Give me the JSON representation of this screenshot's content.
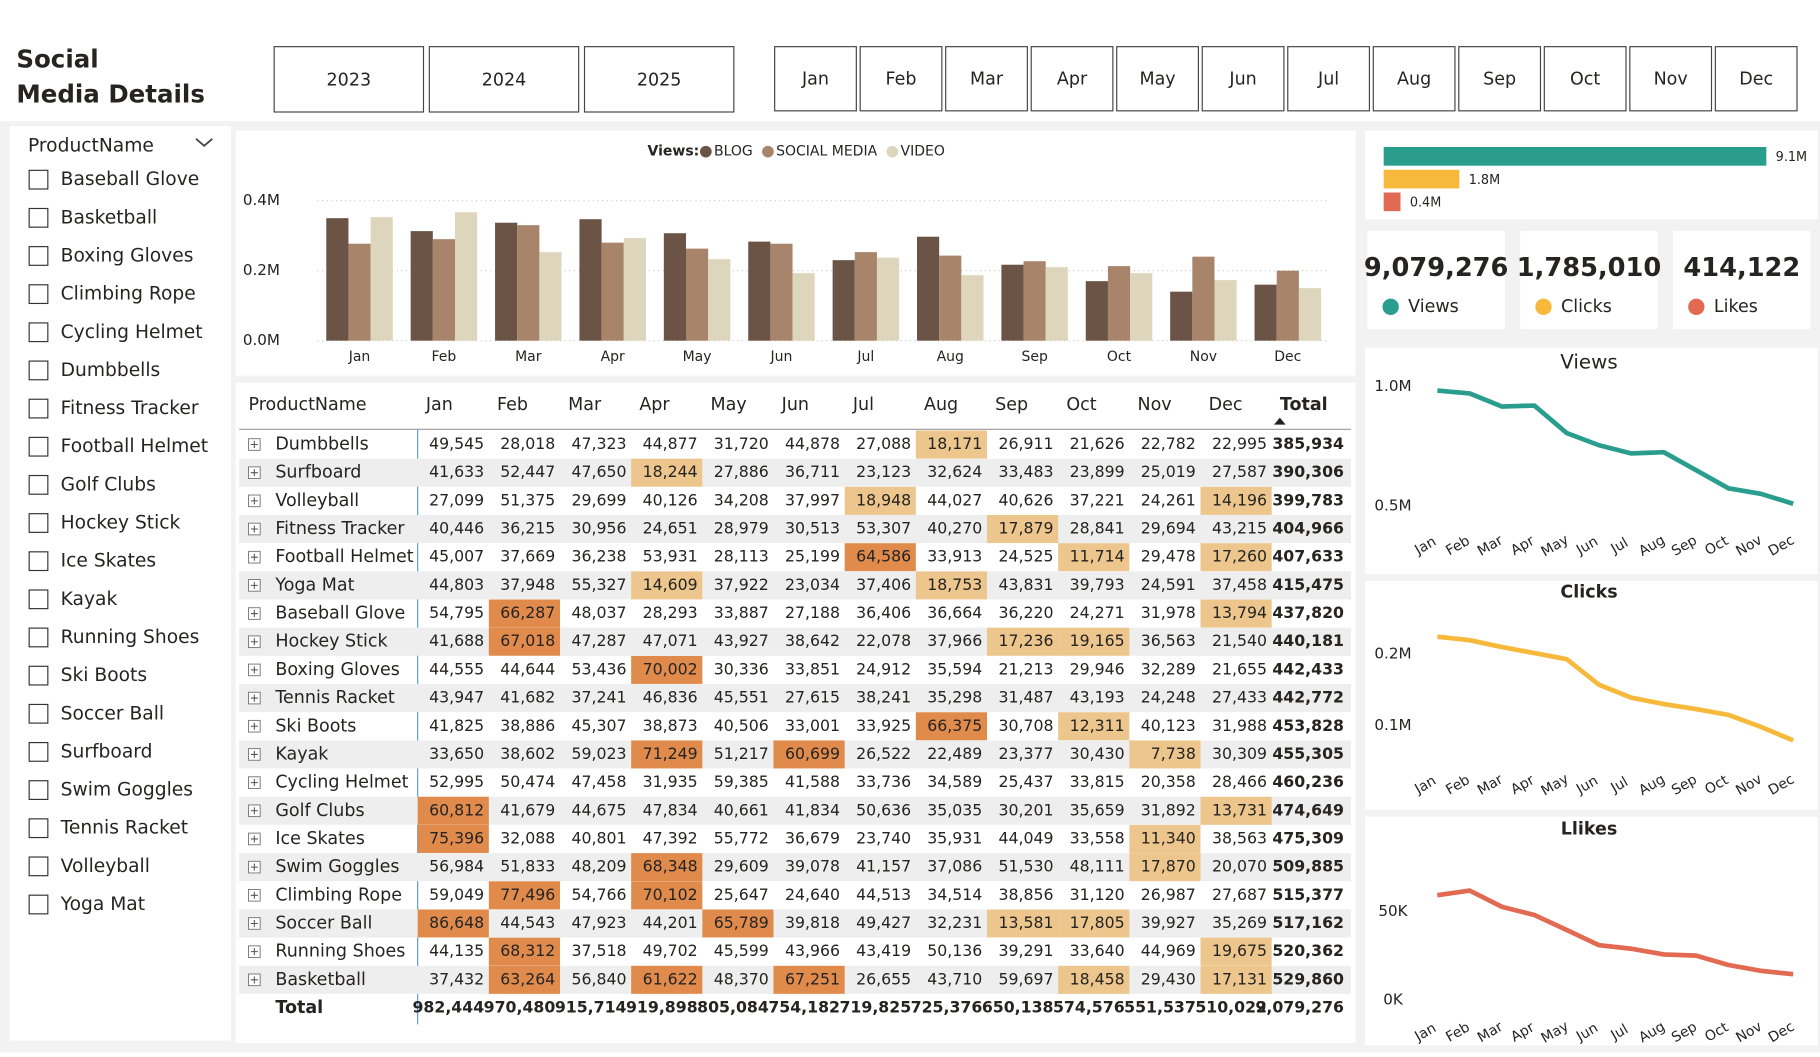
{
  "header": {
    "title_lines": [
      "Social",
      "Media Details"
    ]
  },
  "year_buttons": [
    "2023",
    "2024",
    "2025"
  ],
  "month_buttons": [
    "Jan",
    "Feb",
    "Mar",
    "Apr",
    "May",
    "Jun",
    "Jul",
    "Aug",
    "Sep",
    "Oct",
    "Nov",
    "Dec"
  ],
  "slicer": {
    "title": "ProductName",
    "items": [
      "Baseball Glove",
      "Basketball",
      "Boxing Gloves",
      "Climbing Rope",
      "Cycling Helmet",
      "Dumbbells",
      "Fitness Tracker",
      "Football Helmet",
      "Golf Clubs",
      "Hockey Stick",
      "Ice Skates",
      "Kayak",
      "Running Shoes",
      "Ski Boots",
      "Soccer Ball",
      "Surfboard",
      "Swim Goggles",
      "Tennis Racket",
      "Volleyball",
      "Yoga Mat"
    ]
  },
  "chart_data": [
    {
      "type": "bar",
      "legend_title": "Views:",
      "categories": [
        "Jan",
        "Feb",
        "Mar",
        "Apr",
        "May",
        "Jun",
        "Jul",
        "Aug",
        "Sep",
        "Oct",
        "Nov",
        "Dec"
      ],
      "series": [
        {
          "name": "BLOG",
          "color": "#6b5445",
          "values": [
            0.35,
            0.313,
            0.337,
            0.347,
            0.307,
            0.283,
            0.23,
            0.297,
            0.217,
            0.17,
            0.14,
            0.16
          ]
        },
        {
          "name": "SOCIAL MEDIA",
          "color": "#a8846a",
          "values": [
            0.277,
            0.29,
            0.33,
            0.28,
            0.263,
            0.277,
            0.253,
            0.243,
            0.227,
            0.213,
            0.24,
            0.2
          ]
        },
        {
          "name": "VIDEO",
          "color": "#ddd5bc",
          "values": [
            0.353,
            0.367,
            0.253,
            0.293,
            0.233,
            0.193,
            0.237,
            0.187,
            0.21,
            0.193,
            0.173,
            0.15
          ]
        }
      ],
      "ylim": [
        0,
        0.44
      ],
      "yticks": [
        {
          "value": 0,
          "label": "0.0M"
        },
        {
          "value": 0.2,
          "label": "0.2M"
        },
        {
          "value": 0.4,
          "label": "0.4M"
        }
      ],
      "grid": true
    },
    {
      "type": "hbar",
      "values": [
        9.1,
        1.8,
        0.4
      ],
      "value_labels": [
        "9.1M",
        "1.8M",
        "0.4M"
      ],
      "colors": [
        "#2a9d8f",
        "#f6b93b",
        "#e26a52"
      ],
      "xlim": [
        0,
        9.1
      ]
    },
    {
      "type": "line",
      "title": "Views",
      "color": "#2a9d8f",
      "categories": [
        "Jan",
        "Feb",
        "Mar",
        "Apr",
        "May",
        "Jun",
        "Jul",
        "Aug",
        "Sep",
        "Oct",
        "Nov",
        "Dec"
      ],
      "values": [
        982444,
        970480,
        915714,
        919898,
        805084,
        754182,
        719825,
        725376,
        650138,
        574576,
        551537,
        510022
      ],
      "ylim": [
        470000,
        1030000
      ],
      "yticks": [
        {
          "value": 500000,
          "label": "0.5M"
        },
        {
          "value": 1000000,
          "label": "1.0M"
        }
      ]
    },
    {
      "type": "line",
      "title": "Clicks",
      "color": "#f6b93b",
      "categories": [
        "Jan",
        "Feb",
        "Mar",
        "Apr",
        "May",
        "Jun",
        "Jul",
        "Aug",
        "Sep",
        "Oct",
        "Nov",
        "Dec"
      ],
      "values": [
        224600,
        219700,
        210000,
        201600,
        193000,
        157000,
        139000,
        130000,
        123000,
        114800,
        98000,
        79000
      ],
      "ylim": [
        62000,
        234000
      ],
      "yticks": [
        {
          "value": 100000,
          "label": "0.1M"
        },
        {
          "value": 200000,
          "label": "0.2M"
        }
      ]
    },
    {
      "type": "line",
      "title": "Llikes",
      "color": "#e26a52",
      "categories": [
        "Jan",
        "Feb",
        "Mar",
        "Apr",
        "May",
        "Jun",
        "Jul",
        "Aug",
        "Sep",
        "Oct",
        "Nov",
        "Dec"
      ],
      "values": [
        59200,
        61800,
        52600,
        48000,
        39500,
        30900,
        28900,
        25700,
        25000,
        19700,
        16400,
        14500
      ],
      "ylim": [
        0,
        66000
      ],
      "yticks": [
        {
          "value": 0,
          "label": "0K"
        },
        {
          "value": 50000,
          "label": "50K"
        }
      ]
    }
  ],
  "kpis": [
    {
      "value": "9,079,276",
      "label": "Views",
      "color": "#2a9d8f"
    },
    {
      "value": "1,785,010",
      "label": "Clicks",
      "color": "#f6b93b"
    },
    {
      "value": "414,122",
      "label": "Likes",
      "color": "#e26a52"
    }
  ],
  "table": {
    "columns": [
      "ProductName",
      "Jan",
      "Feb",
      "Mar",
      "Apr",
      "May",
      "Jun",
      "Jul",
      "Aug",
      "Sep",
      "Oct",
      "Nov",
      "Dec",
      "Total"
    ],
    "rows": [
      [
        "Dumbbells",
        "49,545",
        "28,018",
        "47,323",
        "44,877",
        "31,720",
        "44,878",
        "27,088",
        "18,171",
        "26,911",
        "21,626",
        "22,782",
        "22,995",
        "385,934"
      ],
      [
        "Surfboard",
        "41,633",
        "52,447",
        "47,650",
        "18,244",
        "27,886",
        "36,711",
        "23,123",
        "32,624",
        "33,483",
        "23,899",
        "25,019",
        "27,587",
        "390,306"
      ],
      [
        "Volleyball",
        "27,099",
        "51,375",
        "29,699",
        "40,126",
        "34,208",
        "37,997",
        "18,948",
        "44,027",
        "40,626",
        "37,221",
        "24,261",
        "14,196",
        "399,783"
      ],
      [
        "Fitness Tracker",
        "40,446",
        "36,215",
        "30,956",
        "24,651",
        "28,979",
        "30,513",
        "53,307",
        "40,270",
        "17,879",
        "28,841",
        "29,694",
        "43,215",
        "404,966"
      ],
      [
        "Football Helmet",
        "45,007",
        "37,669",
        "36,238",
        "53,931",
        "28,113",
        "25,199",
        "64,586",
        "33,913",
        "24,525",
        "11,714",
        "29,478",
        "17,260",
        "407,633"
      ],
      [
        "Yoga Mat",
        "44,803",
        "37,948",
        "55,327",
        "14,609",
        "37,922",
        "23,034",
        "37,406",
        "18,753",
        "43,831",
        "39,793",
        "24,591",
        "37,458",
        "415,475"
      ],
      [
        "Baseball Glove",
        "54,795",
        "66,287",
        "48,037",
        "28,293",
        "33,887",
        "27,188",
        "36,406",
        "36,664",
        "36,220",
        "24,271",
        "31,978",
        "13,794",
        "437,820"
      ],
      [
        "Hockey Stick",
        "41,688",
        "67,018",
        "47,287",
        "47,071",
        "43,927",
        "38,642",
        "22,078",
        "37,966",
        "17,236",
        "19,165",
        "36,563",
        "21,540",
        "440,181"
      ],
      [
        "Boxing Gloves",
        "44,555",
        "44,644",
        "53,436",
        "70,002",
        "30,336",
        "33,851",
        "24,912",
        "35,594",
        "21,213",
        "29,946",
        "32,289",
        "21,655",
        "442,433"
      ],
      [
        "Tennis Racket",
        "43,947",
        "41,682",
        "37,241",
        "46,836",
        "45,551",
        "27,615",
        "38,241",
        "35,298",
        "31,487",
        "43,193",
        "24,248",
        "27,433",
        "442,772"
      ],
      [
        "Ski Boots",
        "41,825",
        "38,886",
        "45,307",
        "38,873",
        "40,506",
        "33,001",
        "33,925",
        "66,375",
        "30,708",
        "12,311",
        "40,123",
        "31,988",
        "453,828"
      ],
      [
        "Kayak",
        "33,650",
        "38,602",
        "59,023",
        "71,249",
        "51,217",
        "60,699",
        "26,522",
        "22,489",
        "23,377",
        "30,430",
        "7,738",
        "30,309",
        "455,305"
      ],
      [
        "Cycling Helmet",
        "52,995",
        "50,474",
        "47,458",
        "31,935",
        "59,385",
        "41,588",
        "33,736",
        "34,589",
        "25,437",
        "33,815",
        "20,358",
        "28,466",
        "460,236"
      ],
      [
        "Golf Clubs",
        "60,812",
        "41,679",
        "44,675",
        "47,834",
        "40,661",
        "41,834",
        "50,636",
        "35,035",
        "30,201",
        "35,659",
        "31,892",
        "13,731",
        "474,649"
      ],
      [
        "Ice Skates",
        "75,396",
        "32,088",
        "40,801",
        "47,392",
        "55,772",
        "36,679",
        "23,740",
        "35,931",
        "44,049",
        "33,558",
        "11,340",
        "38,563",
        "475,309"
      ],
      [
        "Swim Goggles",
        "56,984",
        "51,833",
        "48,209",
        "68,348",
        "29,609",
        "39,078",
        "41,157",
        "37,086",
        "51,530",
        "48,111",
        "17,870",
        "20,070",
        "509,885"
      ],
      [
        "Climbing Rope",
        "59,049",
        "77,496",
        "54,766",
        "70,102",
        "25,647",
        "24,640",
        "44,513",
        "34,514",
        "38,856",
        "31,120",
        "26,987",
        "27,687",
        "515,377"
      ],
      [
        "Soccer Ball",
        "86,648",
        "44,543",
        "47,923",
        "44,201",
        "65,789",
        "39,818",
        "49,427",
        "32,231",
        "13,581",
        "17,805",
        "39,927",
        "35,269",
        "517,162"
      ],
      [
        "Running Shoes",
        "44,135",
        "68,312",
        "37,518",
        "49,702",
        "45,599",
        "43,966",
        "43,419",
        "50,136",
        "39,291",
        "33,640",
        "44,969",
        "19,675",
        "520,362"
      ],
      [
        "Basketball",
        "37,432",
        "63,264",
        "56,840",
        "61,622",
        "48,370",
        "67,251",
        "26,655",
        "43,710",
        "59,697",
        "18,458",
        "29,430",
        "17,131",
        "529,860"
      ]
    ],
    "total_row": [
      "Total",
      "982,444",
      "970,480",
      "915,714",
      "919,898",
      "805,084",
      "754,182",
      "719,825",
      "725,376",
      "650,138",
      "574,576",
      "551,537",
      "510,022",
      "9,079,276"
    ],
    "highlight": {
      "low_below": 20000,
      "low_color": "#ecc68c",
      "high_above": 60000,
      "high_color": "#e08b4c"
    }
  }
}
